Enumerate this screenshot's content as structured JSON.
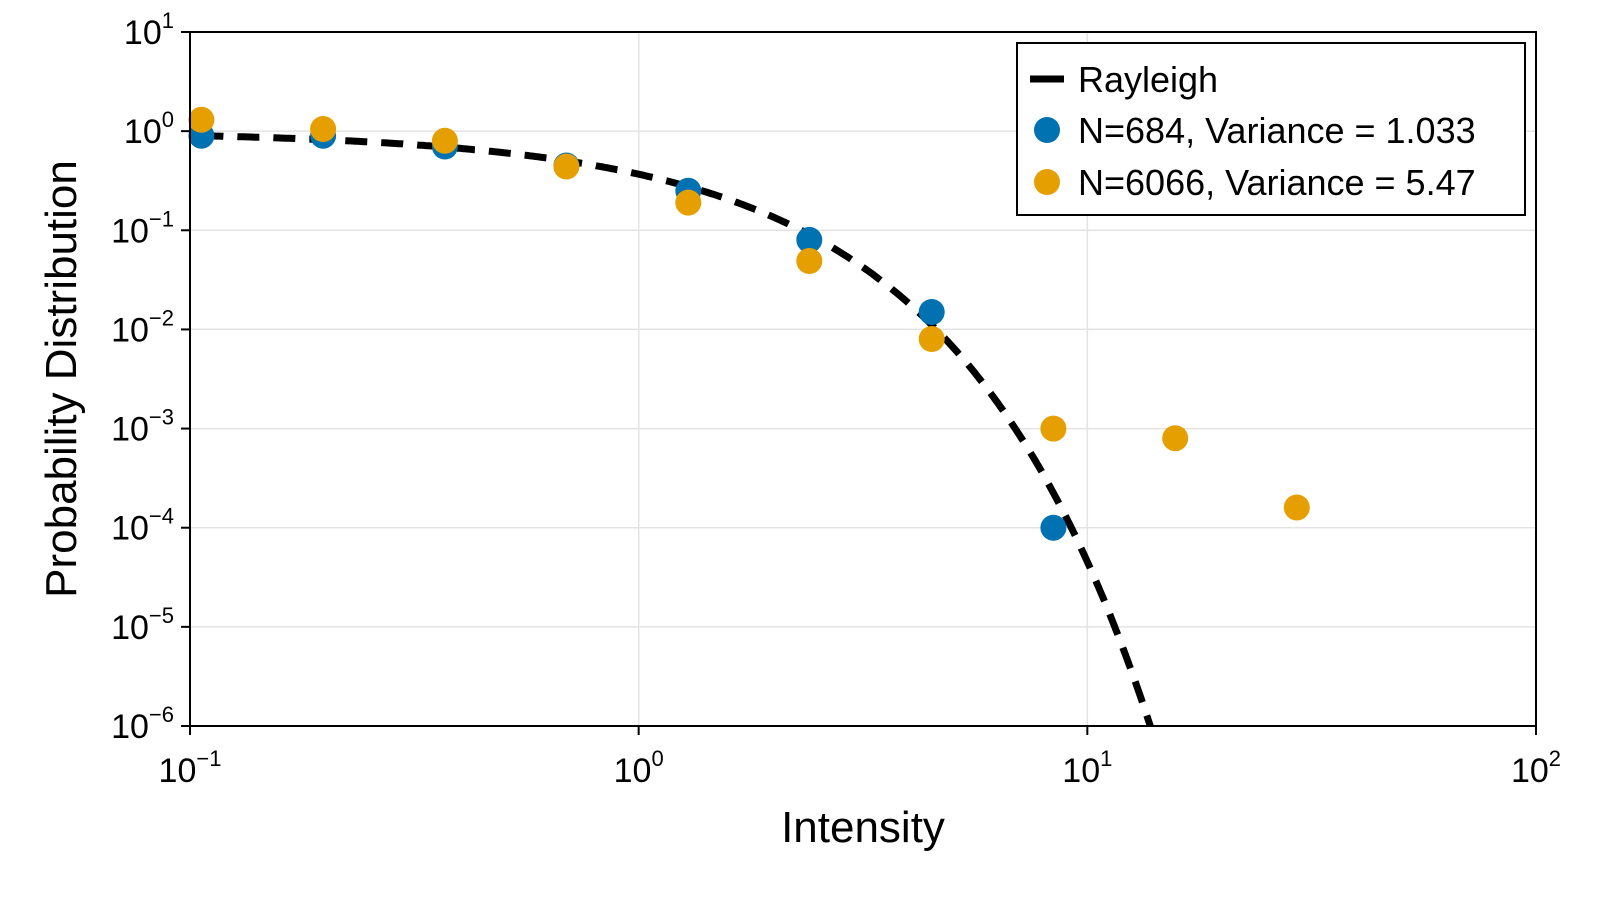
{
  "chart_data": {
    "type": "scatter",
    "title": "",
    "xlabel": "Intensity",
    "ylabel": "Probability Distribution",
    "xscale": "log",
    "yscale": "log",
    "xlim": [
      0.1,
      100
    ],
    "ylim": [
      1e-06,
      10
    ],
    "grid": true,
    "legend_position": "top-right",
    "x_ticks": [
      {
        "base": "10",
        "exp": "−1"
      },
      {
        "base": "10",
        "exp": "0"
      },
      {
        "base": "10",
        "exp": "1"
      },
      {
        "base": "10",
        "exp": "2"
      }
    ],
    "y_ticks": [
      {
        "base": "10",
        "exp": "1"
      },
      {
        "base": "10",
        "exp": "0"
      },
      {
        "base": "10",
        "exp": "−1"
      },
      {
        "base": "10",
        "exp": "−2"
      },
      {
        "base": "10",
        "exp": "−3"
      },
      {
        "base": "10",
        "exp": "−4"
      },
      {
        "base": "10",
        "exp": "−5"
      },
      {
        "base": "10",
        "exp": "−6"
      }
    ],
    "series": [
      {
        "name": "Rayleigh",
        "kind": "line",
        "style": "dashed",
        "color": "#000000",
        "function": "exp(-x)"
      },
      {
        "name": "N=684, Variance = 1.033",
        "kind": "scatter",
        "color": "#0072B2",
        "x": [
          0.106,
          0.198,
          0.37,
          0.69,
          1.29,
          2.4,
          4.5,
          8.4
        ],
        "y": [
          0.9,
          0.9,
          0.7,
          0.45,
          0.25,
          0.08,
          0.015,
          0.0001
        ]
      },
      {
        "name": "N=6066, Variance = 5.47",
        "kind": "scatter",
        "color": "#E69F00",
        "x": [
          0.106,
          0.198,
          0.37,
          0.69,
          1.29,
          2.4,
          4.5,
          8.4,
          15.7,
          29.3
        ],
        "y": [
          1.3,
          1.05,
          0.8,
          0.44,
          0.19,
          0.049,
          0.008,
          0.001,
          0.0008,
          0.00016
        ]
      }
    ]
  }
}
